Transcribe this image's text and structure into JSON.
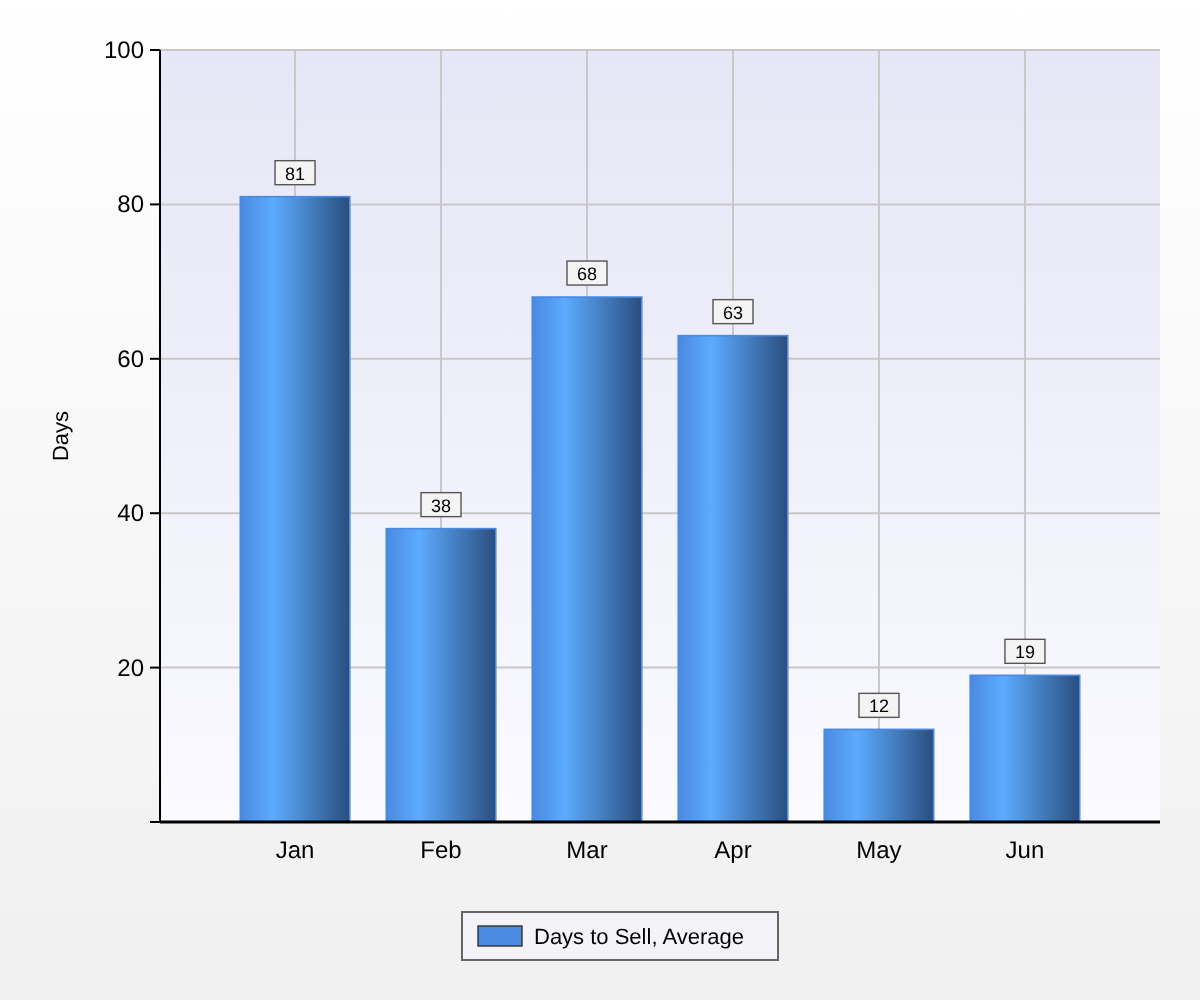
{
  "chart_data": {
    "type": "bar",
    "ylabel": "Days",
    "categories": [
      "Jan",
      "Feb",
      "Mar",
      "Apr",
      "May",
      "Jun"
    ],
    "series": [
      {
        "name": "Days to Sell, Average",
        "color": "#4a8ae0",
        "values": [
          81,
          38,
          68,
          63,
          12,
          19
        ]
      }
    ],
    "ylim": [
      0,
      100
    ],
    "yticks": [
      {
        "value": 0,
        "label": null
      },
      20,
      40,
      60,
      80,
      100
    ],
    "grid": true,
    "legend": "bottom",
    "data_labels": true
  }
}
